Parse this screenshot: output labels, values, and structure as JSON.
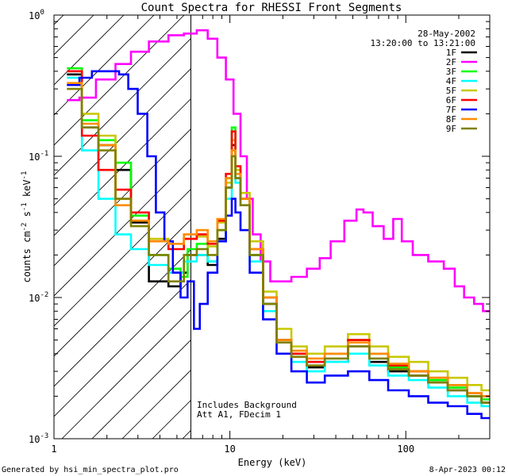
{
  "chart_data": {
    "type": "line",
    "title": "Count Spectra for RHESSI Front Segments",
    "xlabel": "Energy (keV)",
    "ylabel": "counts cm-2 s-1 keV-1",
    "xscale": "log",
    "yscale": "log",
    "xlim": [
      1,
      300
    ],
    "ylim": [
      0.001,
      1.0
    ],
    "x_major_ticks": [
      {
        "value": 1,
        "label": "1"
      },
      {
        "value": 10,
        "label": "10"
      },
      {
        "value": 100,
        "label": "100"
      }
    ],
    "y_major_ticks": [
      {
        "value": 1.0,
        "base": "10",
        "exp": "0"
      },
      {
        "value": 0.1,
        "base": "10",
        "exp": "-1"
      },
      {
        "value": 0.01,
        "base": "10",
        "exp": "-2"
      },
      {
        "value": 0.001,
        "base": "10",
        "exp": "-3"
      }
    ],
    "hatched_region": {
      "x_from": 1,
      "x_to": 6
    },
    "info_date": "28-May-2002",
    "info_time": "13:20:00 to 13:21:00",
    "annotations": [
      "Includes Background",
      "Att A1, FDecim 1"
    ],
    "legend_position": "top-right",
    "series": [
      {
        "name": "1F",
        "color": "#000000",
        "points": [
          [
            1.3,
            0.38
          ],
          [
            1.6,
            0.16
          ],
          [
            2.0,
            0.12
          ],
          [
            2.5,
            0.08
          ],
          [
            3.0,
            0.034
          ],
          [
            4.0,
            0.013
          ],
          [
            5.0,
            0.012
          ],
          [
            5.5,
            0.015
          ],
          [
            6.0,
            0.02
          ],
          [
            7.0,
            0.02
          ],
          [
            8.0,
            0.017
          ],
          [
            9.0,
            0.026
          ],
          [
            10.0,
            0.06
          ],
          [
            10.5,
            0.12
          ],
          [
            11.0,
            0.07
          ],
          [
            12.0,
            0.05
          ],
          [
            14.0,
            0.02
          ],
          [
            17.0,
            0.009
          ],
          [
            20.0,
            0.005
          ],
          [
            25.0,
            0.004
          ],
          [
            30.0,
            0.0032
          ],
          [
            40.0,
            0.0035
          ],
          [
            55.0,
            0.0045
          ],
          [
            70.0,
            0.0035
          ],
          [
            90.0,
            0.003
          ],
          [
            120.0,
            0.0028
          ],
          [
            150.0,
            0.0025
          ],
          [
            200.0,
            0.0022
          ],
          [
            250.0,
            0.002
          ],
          [
            290.0,
            0.0018
          ]
        ]
      },
      {
        "name": "2F",
        "color": "#ff00ff",
        "points": [
          [
            1.3,
            0.25
          ],
          [
            1.5,
            0.26
          ],
          [
            2.0,
            0.35
          ],
          [
            2.5,
            0.45
          ],
          [
            3.0,
            0.55
          ],
          [
            4.0,
            0.65
          ],
          [
            5.0,
            0.72
          ],
          [
            6.0,
            0.74
          ],
          [
            7.0,
            0.78
          ],
          [
            8.0,
            0.68
          ],
          [
            9.0,
            0.5
          ],
          [
            10.0,
            0.35
          ],
          [
            11.0,
            0.2
          ],
          [
            12.0,
            0.1
          ],
          [
            13.0,
            0.05
          ],
          [
            14.0,
            0.028
          ],
          [
            16.0,
            0.018
          ],
          [
            18.0,
            0.013
          ],
          [
            20.0,
            0.013
          ],
          [
            25.0,
            0.014
          ],
          [
            30.0,
            0.016
          ],
          [
            35.0,
            0.019
          ],
          [
            40.0,
            0.025
          ],
          [
            50.0,
            0.035
          ],
          [
            55.0,
            0.042
          ],
          [
            60.0,
            0.04
          ],
          [
            70.0,
            0.032
          ],
          [
            80.0,
            0.026
          ],
          [
            90.0,
            0.036
          ],
          [
            100.0,
            0.025
          ],
          [
            120.0,
            0.02
          ],
          [
            150.0,
            0.018
          ],
          [
            180.0,
            0.016
          ],
          [
            200.0,
            0.012
          ],
          [
            230.0,
            0.01
          ],
          [
            260.0,
            0.009
          ],
          [
            290.0,
            0.008
          ]
        ]
      },
      {
        "name": "3F",
        "color": "#00ff00",
        "points": [
          [
            1.3,
            0.42
          ],
          [
            1.6,
            0.18
          ],
          [
            2.0,
            0.13
          ],
          [
            2.5,
            0.09
          ],
          [
            3.0,
            0.038
          ],
          [
            4.0,
            0.02
          ],
          [
            5.0,
            0.016
          ],
          [
            5.5,
            0.014
          ],
          [
            6.0,
            0.022
          ],
          [
            7.0,
            0.024
          ],
          [
            8.0,
            0.018
          ],
          [
            9.0,
            0.03
          ],
          [
            10.0,
            0.07
          ],
          [
            10.5,
            0.16
          ],
          [
            11.0,
            0.08
          ],
          [
            12.0,
            0.05
          ],
          [
            14.0,
            0.02
          ],
          [
            17.0,
            0.01
          ],
          [
            20.0,
            0.005
          ],
          [
            25.0,
            0.004
          ],
          [
            30.0,
            0.0035
          ],
          [
            40.0,
            0.004
          ],
          [
            55.0,
            0.005
          ],
          [
            70.0,
            0.004
          ],
          [
            90.0,
            0.0032
          ],
          [
            120.0,
            0.003
          ],
          [
            150.0,
            0.0026
          ],
          [
            200.0,
            0.0023
          ],
          [
            250.0,
            0.002
          ],
          [
            290.0,
            0.0019
          ]
        ]
      },
      {
        "name": "4F",
        "color": "#00ffff",
        "points": [
          [
            1.3,
            0.36
          ],
          [
            1.6,
            0.11
          ],
          [
            2.0,
            0.05
          ],
          [
            2.5,
            0.028
          ],
          [
            3.0,
            0.022
          ],
          [
            4.0,
            0.017
          ],
          [
            5.0,
            0.015
          ],
          [
            6.0,
            0.018
          ],
          [
            7.0,
            0.02
          ],
          [
            8.0,
            0.018
          ],
          [
            9.0,
            0.025
          ],
          [
            10.0,
            0.05
          ],
          [
            10.5,
            0.1
          ],
          [
            11.0,
            0.065
          ],
          [
            12.0,
            0.045
          ],
          [
            14.0,
            0.018
          ],
          [
            17.0,
            0.008
          ],
          [
            20.0,
            0.005
          ],
          [
            25.0,
            0.0035
          ],
          [
            30.0,
            0.003
          ],
          [
            40.0,
            0.0035
          ],
          [
            55.0,
            0.004
          ],
          [
            70.0,
            0.0033
          ],
          [
            90.0,
            0.0028
          ],
          [
            120.0,
            0.0026
          ],
          [
            150.0,
            0.0023
          ],
          [
            200.0,
            0.002
          ],
          [
            250.0,
            0.0018
          ],
          [
            290.0,
            0.0017
          ]
        ]
      },
      {
        "name": "5F",
        "color": "#c8c800",
        "points": [
          [
            1.3,
            0.32
          ],
          [
            1.6,
            0.2
          ],
          [
            2.0,
            0.14
          ],
          [
            2.5,
            0.05
          ],
          [
            3.0,
            0.035
          ],
          [
            4.0,
            0.026
          ],
          [
            5.0,
            0.024
          ],
          [
            6.0,
            0.026
          ],
          [
            7.0,
            0.027
          ],
          [
            8.0,
            0.023
          ],
          [
            9.0,
            0.034
          ],
          [
            10.0,
            0.065
          ],
          [
            10.5,
            0.13
          ],
          [
            11.0,
            0.08
          ],
          [
            12.0,
            0.055
          ],
          [
            14.0,
            0.025
          ],
          [
            17.0,
            0.011
          ],
          [
            20.0,
            0.006
          ],
          [
            25.0,
            0.0045
          ],
          [
            30.0,
            0.004
          ],
          [
            40.0,
            0.0045
          ],
          [
            55.0,
            0.0055
          ],
          [
            70.0,
            0.0045
          ],
          [
            90.0,
            0.0038
          ],
          [
            120.0,
            0.0035
          ],
          [
            150.0,
            0.003
          ],
          [
            200.0,
            0.0027
          ],
          [
            250.0,
            0.0024
          ],
          [
            290.0,
            0.0022
          ]
        ]
      },
      {
        "name": "6F",
        "color": "#ff0000",
        "points": [
          [
            1.3,
            0.4
          ],
          [
            1.6,
            0.14
          ],
          [
            2.0,
            0.08
          ],
          [
            2.5,
            0.058
          ],
          [
            3.0,
            0.04
          ],
          [
            4.0,
            0.025
          ],
          [
            5.0,
            0.022
          ],
          [
            6.0,
            0.026
          ],
          [
            7.0,
            0.028
          ],
          [
            8.0,
            0.024
          ],
          [
            9.0,
            0.035
          ],
          [
            10.0,
            0.075
          ],
          [
            10.5,
            0.15
          ],
          [
            11.0,
            0.085
          ],
          [
            12.0,
            0.05
          ],
          [
            14.0,
            0.022
          ],
          [
            17.0,
            0.01
          ],
          [
            20.0,
            0.005
          ],
          [
            25.0,
            0.004
          ],
          [
            30.0,
            0.0035
          ],
          [
            40.0,
            0.004
          ],
          [
            55.0,
            0.005
          ],
          [
            70.0,
            0.004
          ],
          [
            90.0,
            0.0033
          ],
          [
            120.0,
            0.003
          ],
          [
            150.0,
            0.0027
          ],
          [
            200.0,
            0.0024
          ],
          [
            250.0,
            0.0021
          ],
          [
            290.0,
            0.002
          ]
        ]
      },
      {
        "name": "7F",
        "color": "#0000ff",
        "points": [
          [
            1.3,
            0.32
          ],
          [
            1.5,
            0.36
          ],
          [
            1.8,
            0.4
          ],
          [
            2.2,
            0.4
          ],
          [
            2.5,
            0.38
          ],
          [
            2.8,
            0.3
          ],
          [
            3.2,
            0.2
          ],
          [
            3.6,
            0.1
          ],
          [
            4.0,
            0.04
          ],
          [
            4.5,
            0.025
          ],
          [
            5.0,
            0.015
          ],
          [
            5.5,
            0.01
          ],
          [
            6.0,
            0.013
          ],
          [
            6.5,
            0.006
          ],
          [
            7.0,
            0.009
          ],
          [
            8.0,
            0.015
          ],
          [
            9.0,
            0.025
          ],
          [
            10.0,
            0.038
          ],
          [
            10.5,
            0.05
          ],
          [
            11.0,
            0.04
          ],
          [
            12.0,
            0.03
          ],
          [
            14.0,
            0.015
          ],
          [
            17.0,
            0.007
          ],
          [
            20.0,
            0.004
          ],
          [
            25.0,
            0.003
          ],
          [
            30.0,
            0.0025
          ],
          [
            40.0,
            0.0028
          ],
          [
            55.0,
            0.003
          ],
          [
            70.0,
            0.0026
          ],
          [
            90.0,
            0.0022
          ],
          [
            120.0,
            0.002
          ],
          [
            150.0,
            0.0018
          ],
          [
            200.0,
            0.0017
          ],
          [
            250.0,
            0.0015
          ],
          [
            290.0,
            0.0014
          ]
        ]
      },
      {
        "name": "8F",
        "color": "#ff8c00",
        "points": [
          [
            1.3,
            0.33
          ],
          [
            1.6,
            0.17
          ],
          [
            2.0,
            0.12
          ],
          [
            2.5,
            0.045
          ],
          [
            3.0,
            0.035
          ],
          [
            4.0,
            0.025
          ],
          [
            5.0,
            0.024
          ],
          [
            6.0,
            0.028
          ],
          [
            7.0,
            0.03
          ],
          [
            8.0,
            0.025
          ],
          [
            9.0,
            0.036
          ],
          [
            10.0,
            0.07
          ],
          [
            10.5,
            0.11
          ],
          [
            11.0,
            0.075
          ],
          [
            12.0,
            0.05
          ],
          [
            14.0,
            0.022
          ],
          [
            17.0,
            0.01
          ],
          [
            20.0,
            0.005
          ],
          [
            25.0,
            0.0042
          ],
          [
            30.0,
            0.0037
          ],
          [
            40.0,
            0.004
          ],
          [
            55.0,
            0.0048
          ],
          [
            70.0,
            0.004
          ],
          [
            90.0,
            0.0034
          ],
          [
            120.0,
            0.003
          ],
          [
            150.0,
            0.0027
          ],
          [
            200.0,
            0.0024
          ],
          [
            250.0,
            0.0021
          ],
          [
            290.0,
            0.002
          ]
        ]
      },
      {
        "name": "9F",
        "color": "#808000",
        "points": [
          [
            1.3,
            0.3
          ],
          [
            1.6,
            0.16
          ],
          [
            2.0,
            0.11
          ],
          [
            2.5,
            0.05
          ],
          [
            3.0,
            0.032
          ],
          [
            4.0,
            0.02
          ],
          [
            5.0,
            0.013
          ],
          [
            6.0,
            0.02
          ],
          [
            7.0,
            0.022
          ],
          [
            8.0,
            0.02
          ],
          [
            9.0,
            0.03
          ],
          [
            10.0,
            0.06
          ],
          [
            10.5,
            0.1
          ],
          [
            11.0,
            0.07
          ],
          [
            12.0,
            0.045
          ],
          [
            14.0,
            0.02
          ],
          [
            17.0,
            0.009
          ],
          [
            20.0,
            0.0048
          ],
          [
            25.0,
            0.0038
          ],
          [
            30.0,
            0.0033
          ],
          [
            40.0,
            0.0037
          ],
          [
            55.0,
            0.0045
          ],
          [
            70.0,
            0.0037
          ],
          [
            90.0,
            0.0031
          ],
          [
            120.0,
            0.0028
          ],
          [
            150.0,
            0.0025
          ],
          [
            200.0,
            0.0022
          ],
          [
            250.0,
            0.002
          ],
          [
            290.0,
            0.0018
          ]
        ]
      }
    ]
  },
  "footer": {
    "generated_by": "Generated by hsi_min_spectra_plot.pro",
    "date": "8-Apr-2023 00:12"
  }
}
